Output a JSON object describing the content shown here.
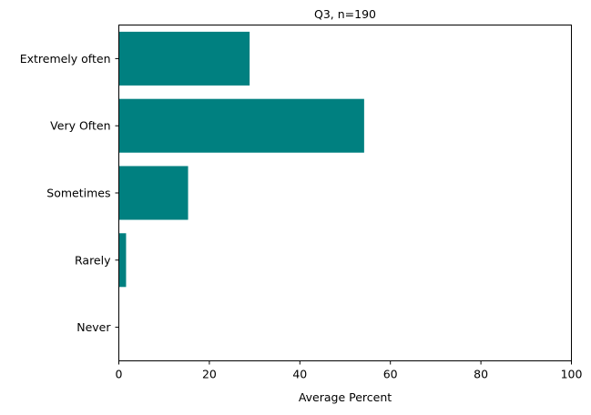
{
  "chart_data": {
    "type": "bar",
    "orientation": "horizontal",
    "title": "Q3, n=190",
    "xlabel": "Average Percent",
    "ylabel": "",
    "categories": [
      "Extremely often",
      "Very Often",
      "Sometimes",
      "Rarely",
      "Never"
    ],
    "values": [
      28.9,
      54.2,
      15.3,
      1.6,
      0
    ],
    "xlim": [
      0,
      100
    ],
    "xticks": [
      0,
      20,
      40,
      60,
      80,
      100
    ],
    "grid": false,
    "bar_color": "#008080"
  }
}
